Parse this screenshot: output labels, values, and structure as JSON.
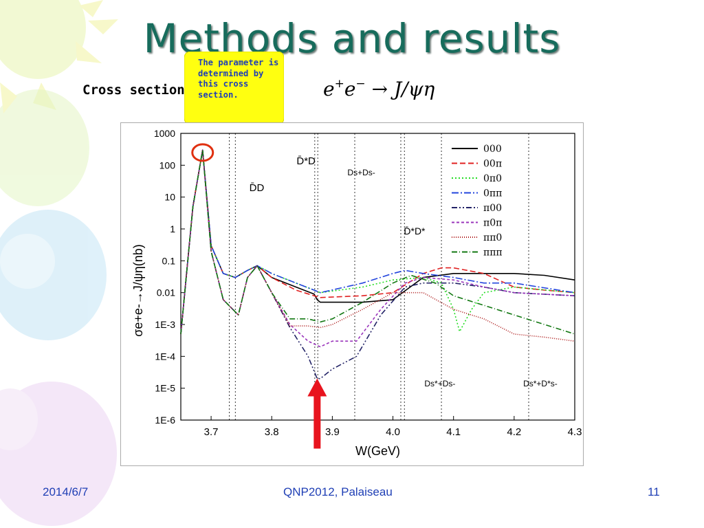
{
  "slide": {
    "title": "Methods and results",
    "subtitle": "Cross section of",
    "formula": {
      "lhs": "e",
      "plus": "+",
      "e2": "e",
      "minus": "−",
      "arrow": "→",
      "rhs": "J/ψη"
    },
    "callout_text": "The parameter is determined by this cross section.",
    "footer": {
      "date": "2014/6/7",
      "venue": "QNP2012, Palaiseau",
      "page": "11"
    }
  },
  "chart_data": {
    "type": "line",
    "xlabel": "W(GeV)",
    "ylabel": "σe+e-→J/ψη(nb)",
    "xlim": [
      3.65,
      4.3
    ],
    "ylim": [
      1e-06,
      1000
    ],
    "yscale": "log",
    "xticks": [
      "3.7",
      "3.8",
      "3.9",
      "4.0",
      "4.1",
      "4.2",
      "4.3"
    ],
    "yticks": [
      "1000",
      "100",
      "10",
      "1",
      "0.1",
      "0.01",
      "1E-3",
      "1E-4",
      "1E-5",
      "1E-6"
    ],
    "thresholds": [
      {
        "label": "D̄D",
        "x": [
          3.73,
          3.74
        ]
      },
      {
        "label": "D̄*D",
        "x": [
          3.871,
          3.876
        ]
      },
      {
        "label": "Ds+Ds-",
        "x": [
          3.937
        ]
      },
      {
        "label": "D̄*D*",
        "x": [
          4.013,
          4.019
        ]
      },
      {
        "label": "Ds*+Ds-",
        "x": [
          4.08
        ]
      },
      {
        "label": "Ds*+D*s-",
        "x": [
          4.224
        ]
      }
    ],
    "series": [
      {
        "name": "000",
        "color": "#000000",
        "dash": "",
        "x": [
          3.65,
          3.67,
          3.686,
          3.7,
          3.72,
          3.74,
          3.76,
          3.776,
          3.8,
          3.84,
          3.87,
          3.875,
          3.88,
          3.9,
          3.95,
          4.0,
          4.05,
          4.1,
          4.15,
          4.2,
          4.25,
          4.3
        ],
        "y": [
          0.0005,
          5,
          300,
          0.3,
          0.04,
          0.03,
          0.05,
          0.07,
          0.03,
          0.015,
          0.009,
          0.006,
          0.005,
          0.005,
          0.005,
          0.006,
          0.03,
          0.04,
          0.04,
          0.04,
          0.035,
          0.025
        ]
      },
      {
        "name": "00π",
        "color": "#e02020",
        "dash": "8,4",
        "x": [
          3.65,
          3.67,
          3.686,
          3.7,
          3.72,
          3.74,
          3.76,
          3.776,
          3.8,
          3.84,
          3.87,
          3.88,
          3.95,
          4.0,
          4.05,
          4.08,
          4.1,
          4.15,
          4.2,
          4.25,
          4.3
        ],
        "y": [
          0.0005,
          5,
          300,
          0.3,
          0.04,
          0.03,
          0.05,
          0.07,
          0.03,
          0.012,
          0.008,
          0.007,
          0.008,
          0.01,
          0.04,
          0.06,
          0.06,
          0.04,
          0.015,
          0.012,
          0.01
        ]
      },
      {
        "name": "0π0",
        "color": "#22dd22",
        "dash": "2,3",
        "x": [
          3.65,
          3.67,
          3.686,
          3.7,
          3.72,
          3.74,
          3.76,
          3.776,
          3.8,
          3.84,
          3.87,
          3.88,
          3.95,
          4.0,
          4.05,
          4.08,
          4.1,
          4.11,
          4.13,
          4.15,
          4.2,
          4.3
        ],
        "y": [
          0.0005,
          5,
          300,
          0.3,
          0.04,
          0.03,
          0.05,
          0.07,
          0.04,
          0.02,
          0.012,
          0.01,
          0.015,
          0.025,
          0.03,
          0.02,
          0.003,
          0.0006,
          0.003,
          0.01,
          0.015,
          0.01
        ]
      },
      {
        "name": "0ππ",
        "color": "#2244dd",
        "dash": "10,3,2,3",
        "x": [
          3.65,
          3.67,
          3.686,
          3.7,
          3.72,
          3.74,
          3.76,
          3.776,
          3.8,
          3.84,
          3.87,
          3.88,
          3.95,
          4.0,
          4.02,
          4.05,
          4.1,
          4.15,
          4.2,
          4.3
        ],
        "y": [
          0.0005,
          5,
          300,
          0.3,
          0.04,
          0.03,
          0.05,
          0.07,
          0.04,
          0.02,
          0.012,
          0.01,
          0.02,
          0.04,
          0.05,
          0.04,
          0.03,
          0.02,
          0.02,
          0.01
        ]
      },
      {
        "name": "π00",
        "color": "#222266",
        "dash": "8,3,2,3,2,3",
        "x": [
          3.65,
          3.67,
          3.686,
          3.7,
          3.72,
          3.745,
          3.76,
          3.776,
          3.8,
          3.83,
          3.86,
          3.875,
          3.88,
          3.9,
          3.94,
          3.98,
          4.02,
          4.05,
          4.1,
          4.15,
          4.2,
          4.3
        ],
        "y": [
          0.0005,
          5,
          300,
          0.2,
          0.006,
          0.002,
          0.03,
          0.07,
          0.01,
          0.0008,
          0.0001,
          2e-05,
          2e-05,
          4e-05,
          0.0001,
          0.002,
          0.015,
          0.02,
          0.02,
          0.015,
          0.01,
          0.008
        ]
      },
      {
        "name": "π0π",
        "color": "#9933bb",
        "dash": "4,3",
        "x": [
          3.65,
          3.67,
          3.686,
          3.7,
          3.72,
          3.745,
          3.76,
          3.776,
          3.8,
          3.83,
          3.86,
          3.88,
          3.9,
          3.94,
          3.98,
          4.02,
          4.05,
          4.1,
          4.15,
          4.2,
          4.3
        ],
        "y": [
          0.0005,
          5,
          300,
          0.2,
          0.006,
          0.002,
          0.03,
          0.07,
          0.01,
          0.001,
          0.0003,
          0.0002,
          0.0003,
          0.0003,
          0.003,
          0.02,
          0.03,
          0.025,
          0.015,
          0.01,
          0.008
        ]
      },
      {
        "name": "ππ0",
        "color": "#aa1111",
        "dash": "1,2",
        "x": [
          3.65,
          3.67,
          3.686,
          3.7,
          3.72,
          3.745,
          3.76,
          3.776,
          3.8,
          3.83,
          3.86,
          3.88,
          3.9,
          3.95,
          4.0,
          4.05,
          4.1,
          4.15,
          4.2,
          4.25,
          4.3
        ],
        "y": [
          0.0005,
          5,
          300,
          0.2,
          0.006,
          0.002,
          0.03,
          0.07,
          0.01,
          0.0009,
          0.0009,
          0.0008,
          0.001,
          0.003,
          0.01,
          0.01,
          0.003,
          0.0015,
          0.0005,
          0.0004,
          0.0003
        ]
      },
      {
        "name": "πππ",
        "color": "#117711",
        "dash": "8,3,1,3",
        "x": [
          3.65,
          3.67,
          3.686,
          3.7,
          3.72,
          3.745,
          3.76,
          3.776,
          3.8,
          3.83,
          3.86,
          3.88,
          3.9,
          3.95,
          4.0,
          4.03,
          4.07,
          4.1,
          4.15,
          4.2,
          4.25,
          4.3
        ],
        "y": [
          0.0005,
          5,
          300,
          0.2,
          0.006,
          0.002,
          0.03,
          0.07,
          0.01,
          0.0015,
          0.0015,
          0.0012,
          0.0015,
          0.005,
          0.02,
          0.035,
          0.02,
          0.008,
          0.004,
          0.002,
          0.001,
          0.0005
        ]
      }
    ]
  }
}
